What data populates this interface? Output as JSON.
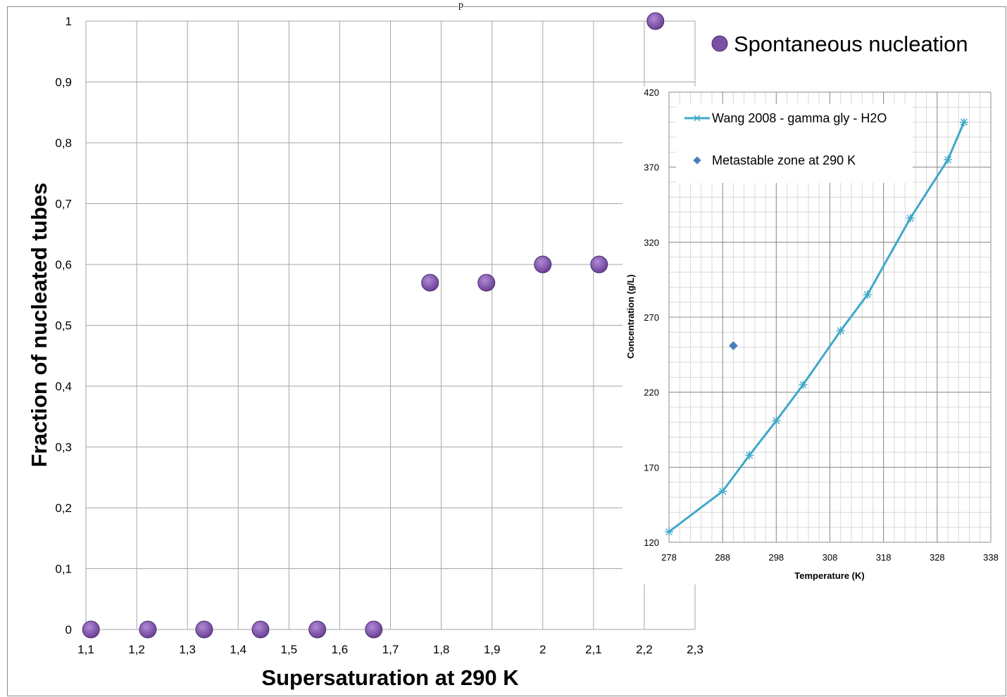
{
  "top_cut_text": "p",
  "chart_data": [
    {
      "type": "scatter",
      "title": "",
      "xlabel": "Supersaturation at 290 K",
      "ylabel": "Fraction of nucleated tubes",
      "xlim": [
        1.1,
        2.3
      ],
      "ylim": [
        0,
        1
      ],
      "x_ticks": [
        "1,1",
        "1,2",
        "1,3",
        "1,4",
        "1,5",
        "1,6",
        "1,7",
        "1,8",
        "1,9",
        "2",
        "2,1",
        "2,2",
        "2,3"
      ],
      "y_ticks": [
        "0",
        "0,1",
        "0,2",
        "0,3",
        "0,4",
        "0,5",
        "0,6",
        "0,7",
        "0,8",
        "0,9",
        "1"
      ],
      "grid": true,
      "legend_position": "top-right",
      "series": [
        {
          "name": "Spontaneous nucleation",
          "color": "#7b4fa3",
          "marker": "circle",
          "x": [
            1.11,
            1.222,
            1.333,
            1.444,
            1.556,
            1.667,
            1.778,
            1.889,
            2.0,
            2.111,
            2.222
          ],
          "y": [
            0,
            0,
            0,
            0,
            0,
            0,
            0.57,
            0.57,
            0.6,
            0.6,
            1.0
          ]
        }
      ]
    },
    {
      "type": "line",
      "title": "",
      "xlabel": "Temperature (K)",
      "ylabel": "Concentration (g/L)",
      "xlim": [
        278,
        338
      ],
      "ylim": [
        120,
        420
      ],
      "x_ticks": [
        "278",
        "288",
        "298",
        "308",
        "318",
        "328",
        "338"
      ],
      "y_ticks": [
        "120",
        "170",
        "220",
        "270",
        "320",
        "370",
        "420"
      ],
      "grid": true,
      "legend_position": "top-left",
      "series": [
        {
          "name": "Wang 2008 - gamma gly - H2O",
          "color": "#3fa8c8",
          "marker": "star",
          "x": [
            278,
            288,
            293,
            298,
            303,
            310,
            315,
            323,
            330,
            333
          ],
          "y": [
            127,
            154,
            178,
            201,
            225,
            261,
            285,
            336,
            375,
            400
          ]
        },
        {
          "name": "Metastable zone at 290 K",
          "color": "#4a7ebb",
          "marker": "diamond",
          "x": [
            290
          ],
          "y": [
            251
          ]
        }
      ]
    }
  ]
}
